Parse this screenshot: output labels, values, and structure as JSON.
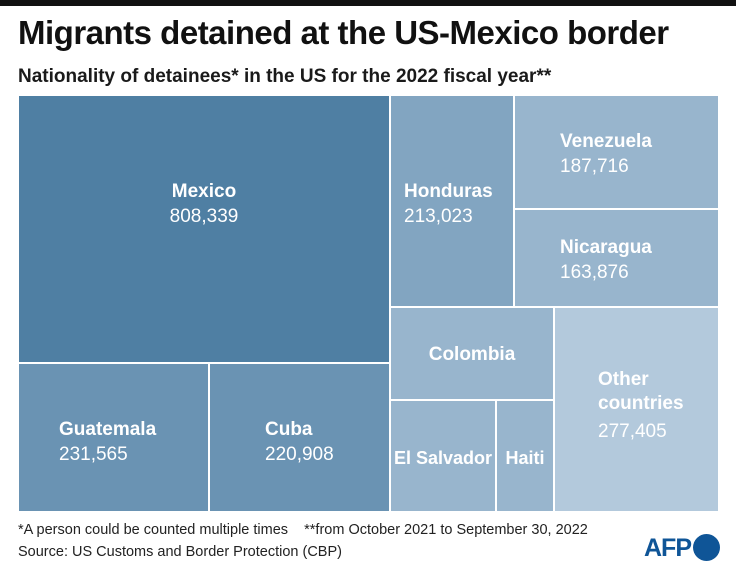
{
  "header": {
    "title": "Migrants detained at the US-Mexico border",
    "subtitle": "Nationality of detainees* in the US for the 2022 fiscal year**"
  },
  "chart_data": {
    "type": "treemap",
    "title": "Migrants detained at the US-Mexico border",
    "subtitle": "Nationality of detainees* in the US for the 2022 fiscal year**",
    "items": [
      {
        "label": "Mexico",
        "value_text": "808,339",
        "value": 808339,
        "color": "#4f7fa3"
      },
      {
        "label": "Guatemala",
        "value_text": "231,565",
        "value": 231565,
        "color": "#6a93b3"
      },
      {
        "label": "Cuba",
        "value_text": "220,908",
        "value": 220908,
        "color": "#6a93b3"
      },
      {
        "label": "Honduras",
        "value_text": "213,023",
        "value": 213023,
        "color": "#82a5c1"
      },
      {
        "label": "Venezuela",
        "value_text": "187,716",
        "value": 187716,
        "color": "#98b5cd"
      },
      {
        "label": "Nicaragua",
        "value_text": "163,876",
        "value": 163876,
        "color": "#98b5cd"
      },
      {
        "label": "Colombia",
        "value_text": "",
        "value": null,
        "color": "#98b5cd"
      },
      {
        "label": "El Salvador",
        "value_text": "",
        "value": null,
        "color": "#98b5cd"
      },
      {
        "label": "Haiti",
        "value_text": "",
        "value": null,
        "color": "#98b5cd"
      },
      {
        "label": "Other countries",
        "label_lines": [
          "Other",
          "countries"
        ],
        "value_text": "277,405",
        "value": 277405,
        "color": "#b3c9dc"
      }
    ]
  },
  "footer": {
    "note": "*A person could be counted multiple times    **from October 2021 to September 30, 2022",
    "source": "Source: US Customs and Border Protection (CBP)",
    "logo": "AFP"
  },
  "icons": {
    "logo_dot": "afp-dot-icon"
  }
}
